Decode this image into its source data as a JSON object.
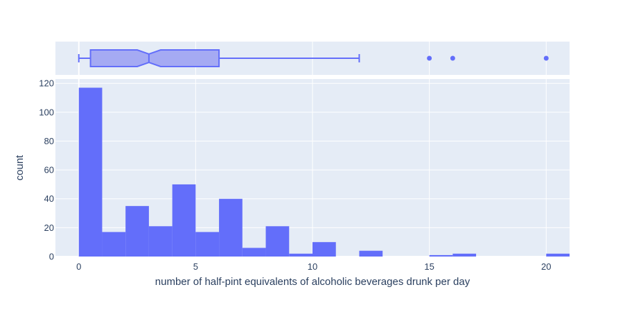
{
  "chart_data": {
    "type": "bar",
    "subtype": "histogram-with-marginal-box",
    "xlabel": "number of half-pint equivalents of alcoholic beverages drunk per day",
    "ylabel": "count",
    "xlim": [
      -1,
      21
    ],
    "ylim": [
      0,
      123
    ],
    "x_ticks": [
      0,
      5,
      10,
      15,
      20
    ],
    "y_ticks": [
      0,
      20,
      40,
      60,
      80,
      100,
      120
    ],
    "bin_width": 1,
    "bins": [
      {
        "start": 0,
        "end": 1,
        "count": 117
      },
      {
        "start": 1,
        "end": 2,
        "count": 17
      },
      {
        "start": 2,
        "end": 3,
        "count": 35
      },
      {
        "start": 3,
        "end": 4,
        "count": 21
      },
      {
        "start": 4,
        "end": 5,
        "count": 50
      },
      {
        "start": 5,
        "end": 6,
        "count": 17
      },
      {
        "start": 6,
        "end": 7,
        "count": 40
      },
      {
        "start": 7,
        "end": 8,
        "count": 6
      },
      {
        "start": 8,
        "end": 9,
        "count": 21
      },
      {
        "start": 9,
        "end": 10,
        "count": 2
      },
      {
        "start": 10,
        "end": 11,
        "count": 10
      },
      {
        "start": 12,
        "end": 13,
        "count": 4
      },
      {
        "start": 15,
        "end": 16,
        "count": 1
      },
      {
        "start": 16,
        "end": 17,
        "count": 2
      },
      {
        "start": 20,
        "end": 21,
        "count": 2
      }
    ],
    "box": {
      "min": 0,
      "q1": 0.5,
      "median": 3,
      "q3": 6,
      "max": 12,
      "notch_low": 2.5,
      "notch_high": 3.5,
      "outliers": [
        15,
        16,
        20
      ]
    },
    "grid": true,
    "colors": {
      "bar": "#636efa",
      "box_fill": "#a5aaf3",
      "box_line": "#636efa",
      "plot_bg": "#e5ecf6",
      "grid": "#ffffff",
      "text": "#2a3f5f"
    }
  }
}
